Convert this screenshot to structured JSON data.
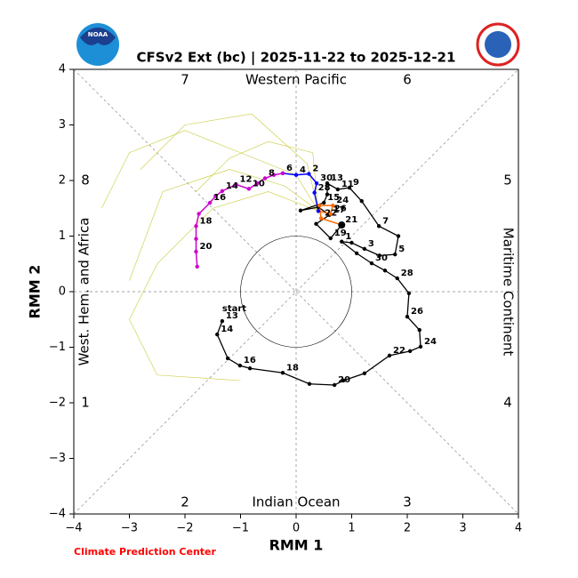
{
  "chart_data": {
    "type": "phase",
    "title": "CFSv2 Ext (bc) | 2025-11-22 to 2025-12-21",
    "xlabel": "RMM 1",
    "ylabel": "RMM 2",
    "logo_text": "NOAA",
    "credit": "Climate Prediction Center",
    "start_label": "start",
    "phases": [
      "1",
      "2",
      "3",
      "4",
      "5",
      "6",
      "7",
      "8"
    ],
    "regions": [
      "Western Pacific",
      "Indian Ocean",
      "West. Hem. and Africa",
      "Maritime Continent"
    ],
    "xlim": [
      -4,
      4
    ],
    "ylim": [
      -4,
      4
    ],
    "xticks": [
      {
        "value": -4,
        "label": "−4"
      },
      {
        "value": -3,
        "label": "−3"
      },
      {
        "value": -2,
        "label": "−2"
      },
      {
        "value": -1,
        "label": "−1"
      },
      0,
      1,
      2,
      3,
      4
    ],
    "yticks": [
      {
        "value": -4,
        "label": "−4"
      },
      {
        "value": -3,
        "label": "−3"
      },
      {
        "value": -2,
        "label": "−2"
      },
      {
        "value": -1,
        "label": "−1"
      },
      0,
      1,
      2,
      3,
      4
    ],
    "series": [
      {
        "color": "#c9c93a",
        "linewidth": 0.6,
        "markers": false,
        "x": [
          0.4,
          0,
          -1,
          -2,
          -3,
          -3.5
        ],
        "y": [
          1.45,
          2.1,
          2.5,
          2.9,
          2.5,
          1.5
        ]
      },
      {
        "color": "#c9c93a",
        "linewidth": 0.6,
        "markers": false,
        "x": [
          0.4,
          -0.5,
          -1.5,
          -2.5,
          -3,
          -2.5,
          -1
        ],
        "y": [
          1.45,
          1.8,
          1.5,
          0.5,
          -0.5,
          -1.5,
          -1.6
        ]
      },
      {
        "color": "#c9c93a",
        "linewidth": 0.6,
        "markers": false,
        "x": [
          0.4,
          0.3,
          -0.5,
          -1.2,
          -1.8
        ],
        "y": [
          1.45,
          2.5,
          2.7,
          2.4,
          1.8
        ]
      },
      {
        "color": "#c9c93a",
        "linewidth": 0.6,
        "markers": false,
        "x": [
          0.4,
          -0.2,
          -1.2,
          -2.4,
          -3.0
        ],
        "y": [
          1.45,
          1.9,
          2.2,
          1.8,
          0.2
        ]
      },
      {
        "color": "#c9c93a",
        "linewidth": 0.6,
        "markers": false,
        "x": [
          0.4,
          0.2,
          -0.8,
          -2,
          -2.8
        ],
        "y": [
          1.45,
          2.3,
          3.2,
          3.0,
          2.2
        ]
      },
      {
        "color": "#000000",
        "linewidth": 1.3,
        "markers": true,
        "x": [
          -1.33,
          -1.42,
          -1.23,
          -1.01,
          -0.83,
          -0.24,
          0.24,
          0.69,
          0.85,
          1.23,
          1.68,
          2.05,
          2.24,
          2.22,
          2.0,
          2.03,
          1.82,
          1.6,
          1.36,
          1.09,
          0.82,
          1.0,
          1.23,
          1.5,
          1.78,
          1.84,
          1.49,
          1.18,
          0.96,
          0.75,
          0.56,
          0.56,
          0.5,
          0.08,
          0.4,
          0.6,
          0.36,
          0.62,
          0.82
        ],
        "y": [
          -0.53,
          -0.77,
          -1.2,
          -1.33,
          -1.38,
          -1.46,
          -1.66,
          -1.68,
          -1.6,
          -1.47,
          -1.15,
          -1.07,
          -0.99,
          -0.69,
          -0.45,
          -0.03,
          0.24,
          0.38,
          0.51,
          0.69,
          0.9,
          0.88,
          0.77,
          0.65,
          0.67,
          1.0,
          1.18,
          1.63,
          1.87,
          1.84,
          1.95,
          1.75,
          1.6,
          1.46,
          1.52,
          1.38,
          1.22,
          0.96,
          1.2
        ],
        "labels": [
          "13",
          "14",
          null,
          "16",
          null,
          "18",
          null,
          "20",
          null,
          null,
          "22",
          null,
          "24",
          null,
          "26",
          null,
          "28",
          null,
          "30",
          null,
          "1",
          null,
          "3",
          null,
          "5",
          null,
          "7",
          null,
          "9",
          "11",
          "13",
          null,
          "15",
          null,
          null,
          "17",
          null,
          "19",
          "21"
        ]
      },
      {
        "color": "#ff6a00",
        "linewidth": 1.5,
        "markers": true,
        "x": [
          0.82,
          0.45,
          0.42,
          0.66,
          0.62,
          0.4
        ],
        "y": [
          1.2,
          1.32,
          1.55,
          1.55,
          1.4,
          1.45
        ],
        "labels": [
          null,
          "22",
          null,
          "24",
          "26",
          null
        ]
      },
      {
        "color": "#0000ff",
        "linewidth": 1.5,
        "markers": true,
        "x": [
          0.4,
          0.33,
          0.37,
          0.23,
          0.0,
          -0.24
        ],
        "y": [
          1.45,
          1.78,
          1.95,
          2.12,
          2.1,
          2.13
        ],
        "labels": [
          null,
          "28",
          "30",
          "2",
          "4",
          "6"
        ]
      },
      {
        "color": "#cc00cc",
        "linewidth": 1.5,
        "markers": true,
        "x": [
          -0.24,
          -0.4,
          -0.56,
          -0.7,
          -0.85,
          -1.08,
          -1.33,
          -1.45,
          -1.55,
          -1.75,
          -1.8,
          -1.8,
          -1.8,
          -1.78
        ],
        "y": [
          2.13,
          2.1,
          2.04,
          1.95,
          1.85,
          1.93,
          1.81,
          1.72,
          1.6,
          1.4,
          1.18,
          0.95,
          0.72,
          0.45
        ],
        "labels": [
          null,
          null,
          "8",
          null,
          "10",
          "12",
          "14",
          null,
          "16",
          null,
          "18",
          null,
          "20",
          null
        ]
      }
    ]
  }
}
